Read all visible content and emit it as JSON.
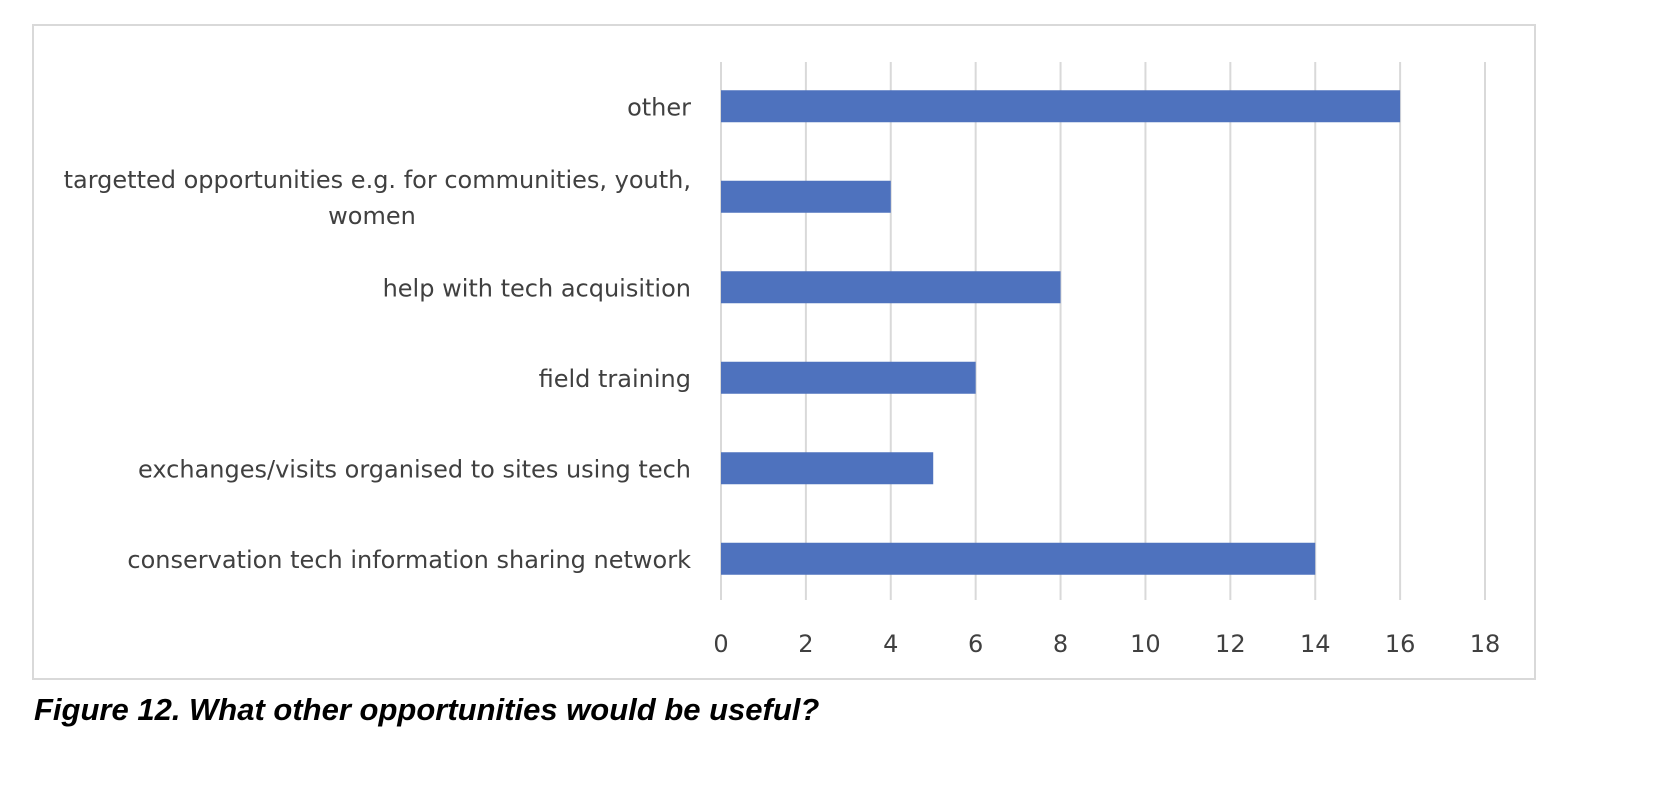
{
  "caption": "Figure 12. What other opportunities would be useful?",
  "colors": {
    "bar": "#4e72be",
    "grid": "#d9d9d9",
    "text": "#404040",
    "frame": "#d9d9d9"
  },
  "chart_data": {
    "type": "bar",
    "orientation": "horizontal",
    "categories": [
      [
        "other"
      ],
      [
        "targetted opportunities e.g. for communities, youth,",
        "women"
      ],
      [
        "help with tech acquisition"
      ],
      [
        "field training"
      ],
      [
        "exchanges/visits organised to sites using tech"
      ],
      [
        "conservation tech information sharing network"
      ]
    ],
    "values": [
      16,
      4,
      8,
      6,
      5,
      14
    ],
    "xlim": [
      0,
      18
    ],
    "xticks": [
      "0",
      "2",
      "4",
      "6",
      "8",
      "10",
      "12",
      "14",
      "16",
      "18"
    ],
    "grid": true,
    "legend": "none",
    "title": "",
    "xlabel": "",
    "ylabel": ""
  }
}
